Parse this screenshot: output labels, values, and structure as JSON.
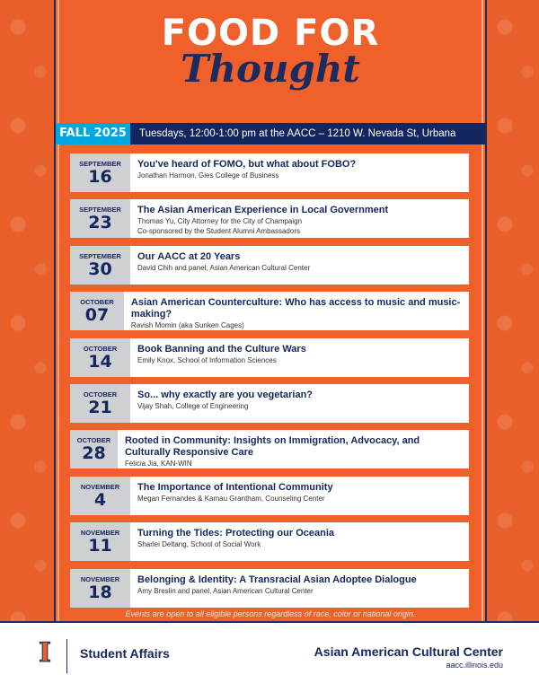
{
  "header": {
    "title_line1": "FOOD FOR",
    "title_line2": "Thought"
  },
  "bar": {
    "season": "FALL 2025",
    "info": "Tuesdays, 12:00-1:00 pm at the AACC – 1210 W. Nevada St, Urbana"
  },
  "events": [
    {
      "month": "SEPTEMBER",
      "day": "16",
      "title": "You've heard of FOMO, but what about FOBO?",
      "speaker": "Jonathan Harmon, Gies College of Business",
      "note": ""
    },
    {
      "month": "SEPTEMBER",
      "day": "23",
      "title": "The Asian American Experience in Local Government",
      "speaker": "Thomas Yu, City Attorney for the City of Champaign",
      "note": "Co-sponsored by the Student Alumni Ambassadors"
    },
    {
      "month": "SEPTEMBER",
      "day": "30",
      "title": "Our AACC at 20 Years",
      "speaker": "David Chih and panel, Asian American Cultural Center",
      "note": ""
    },
    {
      "month": "OCTOBER",
      "day": "07",
      "title": "Asian American Counterculture: Who has access to music and music-making?",
      "speaker": "Ravish Momin (aka Sunken Cages)",
      "note": ""
    },
    {
      "month": "OCTOBER",
      "day": "14",
      "title": "Book Banning and the Culture Wars",
      "speaker": "Emily Knox, School of Information Sciences",
      "note": ""
    },
    {
      "month": "OCTOBER",
      "day": "21",
      "title": "So... why exactly are you vegetarian?",
      "speaker": "Vijay Shah, College of Engineering",
      "note": ""
    },
    {
      "month": "OCTOBER",
      "day": "28",
      "title": "Rooted in Community: Insights on Immigration, Advocacy, and Culturally Responsive Care",
      "speaker": "Felicia Jia, KAN-WIN",
      "note": ""
    },
    {
      "month": "NOVEMBER",
      "day": "4",
      "title": "The Importance of Intentional Community",
      "speaker": "Megan Fernandes & Kamau Grantham, Counseling Center",
      "note": ""
    },
    {
      "month": "NOVEMBER",
      "day": "11",
      "title": "Turning the Tides: Protecting our Oceania",
      "speaker": "Sharlei Deltang, School of Social Work",
      "note": ""
    },
    {
      "month": "NOVEMBER",
      "day": "18",
      "title": "Belonging & Identity: A Transracial Asian Adoptee Dialogue",
      "speaker": "Amy Breslin and panel, Asian American Cultural Center",
      "note": ""
    }
  ],
  "disclaimer": "Events are open to all eligible persons regardless of race, color or national origin.",
  "footer": {
    "logo_letter": "I",
    "unit": "Student Affairs",
    "org": "Asian American Cultural Center",
    "url": "aacc.illinois.edu"
  },
  "colors": {
    "orange": "#f0602a",
    "navy": "#13275e",
    "cyan": "#00a8e0",
    "date_gray": "#cfd0d3"
  }
}
